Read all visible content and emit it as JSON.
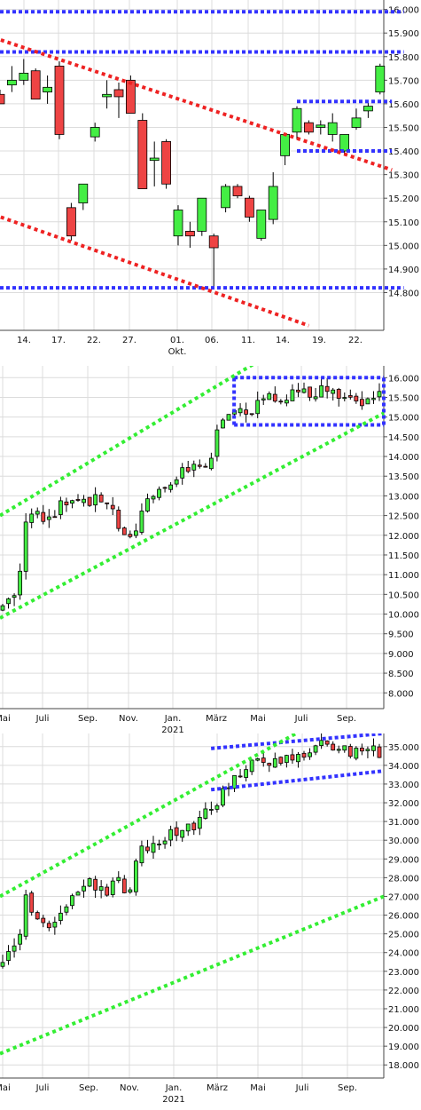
{
  "chart_data": [
    {
      "type": "candlestick",
      "ylim": [
        14640,
        16040
      ],
      "yticks": [
        "14.800",
        "14.900",
        "15.000",
        "15.100",
        "15.200",
        "15.300",
        "15.400",
        "15.500",
        "15.600",
        "15.700",
        "15.800",
        "15.900",
        "16.000"
      ],
      "ytick_values": [
        14800,
        14900,
        15000,
        15100,
        15200,
        15300,
        15400,
        15500,
        15600,
        15700,
        15800,
        15900,
        16000
      ],
      "xticks": [
        "14.",
        "17.",
        "22.",
        "27.",
        "01.",
        "06.",
        "11.",
        "14.",
        "19.",
        "22."
      ],
      "xtick_sub": [
        {
          "index": 4,
          "text": "Okt."
        }
      ],
      "up_color": "#44ee44",
      "down_color": "#ee4444",
      "candles": [
        {
          "o": 15640,
          "h": 15660,
          "l": 15600,
          "c": 15600
        },
        {
          "o": 15680,
          "h": 15760,
          "l": 15650,
          "c": 15700
        },
        {
          "o": 15700,
          "h": 15790,
          "l": 15680,
          "c": 15730
        },
        {
          "o": 15740,
          "h": 15750,
          "l": 15620,
          "c": 15620
        },
        {
          "o": 15650,
          "h": 15720,
          "l": 15600,
          "c": 15670
        },
        {
          "o": 15760,
          "h": 15780,
          "l": 15450,
          "c": 15470
        },
        {
          "o": 15160,
          "h": 15180,
          "l": 15020,
          "c": 15040
        },
        {
          "o": 15180,
          "h": 15250,
          "l": 15150,
          "c": 15260
        },
        {
          "o": 15460,
          "h": 15520,
          "l": 15440,
          "c": 15500
        },
        {
          "o": 15630,
          "h": 15700,
          "l": 15580,
          "c": 15640
        },
        {
          "o": 15660,
          "h": 15690,
          "l": 15540,
          "c": 15630
        },
        {
          "o": 15700,
          "h": 15720,
          "l": 15560,
          "c": 15560
        },
        {
          "o": 15530,
          "h": 15560,
          "l": 15240,
          "c": 15240
        },
        {
          "o": 15360,
          "h": 15440,
          "l": 15250,
          "c": 15370
        },
        {
          "o": 15440,
          "h": 15450,
          "l": 15240,
          "c": 15260
        },
        {
          "o": 15040,
          "h": 15170,
          "l": 15000,
          "c": 15150
        },
        {
          "o": 15060,
          "h": 15100,
          "l": 14990,
          "c": 15040
        },
        {
          "o": 15060,
          "h": 15200,
          "l": 15040,
          "c": 15200
        },
        {
          "o": 15040,
          "h": 15050,
          "l": 14820,
          "c": 14990
        },
        {
          "o": 15160,
          "h": 15260,
          "l": 15140,
          "c": 15250
        },
        {
          "o": 15250,
          "h": 15260,
          "l": 15200,
          "c": 15210
        },
        {
          "o": 15200,
          "h": 15210,
          "l": 15100,
          "c": 15120
        },
        {
          "o": 15030,
          "h": 15150,
          "l": 15020,
          "c": 15150
        },
        {
          "o": 15110,
          "h": 15310,
          "l": 15090,
          "c": 15250
        },
        {
          "o": 15380,
          "h": 15460,
          "l": 15340,
          "c": 15470
        },
        {
          "o": 15480,
          "h": 15590,
          "l": 15450,
          "c": 15580
        },
        {
          "o": 15520,
          "h": 15530,
          "l": 15470,
          "c": 15480
        },
        {
          "o": 15500,
          "h": 15530,
          "l": 15470,
          "c": 15510
        },
        {
          "o": 15470,
          "h": 15560,
          "l": 15440,
          "c": 15520
        },
        {
          "o": 15400,
          "h": 15470,
          "l": 15380,
          "c": 15470
        },
        {
          "o": 15500,
          "h": 15580,
          "l": 15490,
          "c": 15540
        },
        {
          "o": 15570,
          "h": 15610,
          "l": 15540,
          "c": 15590
        },
        {
          "o": 15650,
          "h": 15770,
          "l": 15640,
          "c": 15760
        }
      ],
      "lines": [
        {
          "color": "#3333ff",
          "points": [
            [
              0,
              15990
            ],
            [
              34,
              15990
            ]
          ]
        },
        {
          "color": "#3333ff",
          "points": [
            [
              0,
              15820
            ],
            [
              34,
              15820
            ]
          ]
        },
        {
          "color": "#3333ff",
          "points": [
            [
              0,
              14820
            ],
            [
              34,
              14820
            ]
          ]
        },
        {
          "color": "#3333ff",
          "points": [
            [
              25,
              15610
            ],
            [
              33,
              15610
            ]
          ]
        },
        {
          "color": "#3333ff",
          "points": [
            [
              25,
              15400
            ],
            [
              33,
              15400
            ]
          ]
        },
        {
          "color": "#ee2222",
          "points": [
            [
              -0.5,
              15880
            ],
            [
              33,
              15320
            ]
          ]
        },
        {
          "color": "#ee2222",
          "points": [
            [
              -0.5,
              15130
            ],
            [
              26,
              14660
            ]
          ]
        }
      ]
    },
    {
      "type": "candlestick",
      "ylim": [
        7600,
        16300
      ],
      "yticks": [
        "8.000",
        "8.500",
        "9.000",
        "9.500",
        "10.000",
        "10.500",
        "11.000",
        "11.500",
        "12.000",
        "12.500",
        "13.000",
        "13.500",
        "14.000",
        "14.500",
        "15.000",
        "15.500",
        "16.000"
      ],
      "ytick_values": [
        8000,
        8500,
        9000,
        9500,
        10000,
        10500,
        11000,
        11500,
        12000,
        12500,
        13000,
        13500,
        14000,
        14500,
        15000,
        15500,
        16000
      ],
      "xticks": [
        "Mai",
        "Juli",
        "Sep.",
        "Nov.",
        "Jan.",
        "März",
        "Mai",
        "Juli",
        "Sep."
      ],
      "xtick_sub": [
        {
          "index": 4,
          "text": "2021"
        }
      ],
      "up_color": "#44ee44",
      "down_color": "#ee4444",
      "lines": [
        {
          "color": "#3333ff",
          "points": [
            [
              0.61,
              16000
            ],
            [
              1.0,
              16000
            ]
          ]
        },
        {
          "color": "#3333ff",
          "points": [
            [
              0.61,
              14800
            ],
            [
              1.0,
              14800
            ]
          ]
        },
        {
          "color": "#3333ff",
          "points": [
            [
              0.61,
              14800
            ],
            [
              0.61,
              16000
            ]
          ]
        },
        {
          "color": "#3333ff",
          "points": [
            [
              1.0,
              14800
            ],
            [
              1.0,
              16000
            ]
          ]
        },
        {
          "color": "#33ee33",
          "points": [
            [
              0.0,
              12500
            ],
            [
              0.67,
              16400
            ]
          ]
        },
        {
          "color": "#33ee33",
          "points": [
            [
              0.0,
              9900
            ],
            [
              1.0,
              15100
            ]
          ]
        }
      ]
    },
    {
      "type": "candlestick",
      "ylim": [
        17300,
        35700
      ],
      "yticks": [
        "18.000",
        "19.000",
        "20.000",
        "21.000",
        "22.000",
        "23.000",
        "24.000",
        "25.000",
        "26.000",
        "27.000",
        "28.000",
        "29.000",
        "30.000",
        "31.000",
        "32.000",
        "33.000",
        "34.000",
        "35.000"
      ],
      "ytick_values": [
        18000,
        19000,
        20000,
        21000,
        22000,
        23000,
        24000,
        25000,
        26000,
        27000,
        28000,
        29000,
        30000,
        31000,
        32000,
        33000,
        34000,
        35000
      ],
      "xticks": [
        "Mai",
        "Juli",
        "Sep.",
        "Nov.",
        "Jan.",
        "März",
        "Mai",
        "Juli",
        "Sep."
      ],
      "xtick_sub": [
        {
          "index": 4,
          "text": "2021"
        }
      ],
      "up_color": "#44ee44",
      "down_color": "#ee4444",
      "lines": [
        {
          "color": "#3333ff",
          "points": [
            [
              0.55,
              34900
            ],
            [
              1.0,
              35700
            ]
          ]
        },
        {
          "color": "#3333ff",
          "points": [
            [
              0.55,
              32700
            ],
            [
              1.0,
              33700
            ]
          ]
        },
        {
          "color": "#33ee33",
          "points": [
            [
              0.0,
              27000
            ],
            [
              0.78,
              35800
            ]
          ]
        },
        {
          "color": "#33ee33",
          "points": [
            [
              0.0,
              18600
            ],
            [
              1.0,
              27000
            ]
          ]
        }
      ]
    }
  ]
}
